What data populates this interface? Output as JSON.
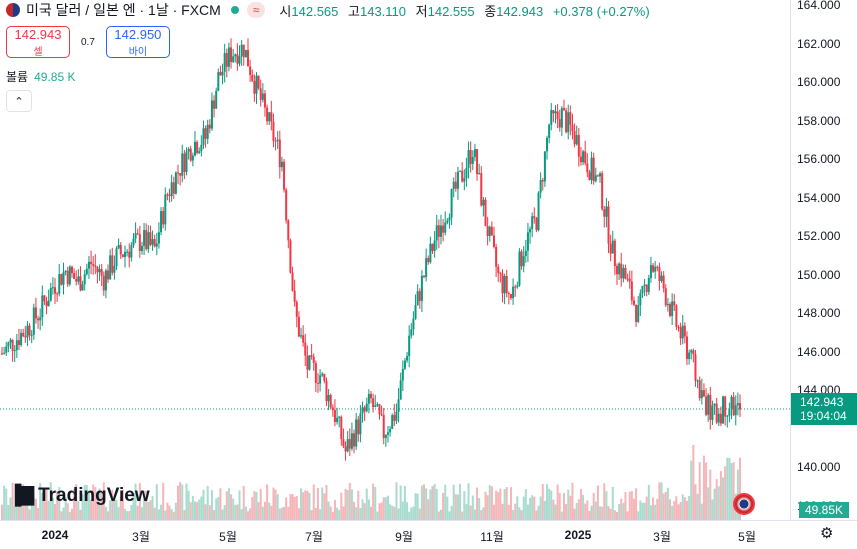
{
  "symbol": {
    "title": "미국 달러 / 일본 엔 · 1날 · FXCM",
    "status_glyph": "≈"
  },
  "ohlc": {
    "open_label": "시",
    "open": "142.565",
    "high_label": "고",
    "high": "143.110",
    "low_label": "저",
    "low": "142.555",
    "close_label": "종",
    "close": "142.943",
    "change": "+0.378 (+0.27%)"
  },
  "trade": {
    "sell_price": "142.943",
    "sell_label": "셀",
    "spread": "0.7",
    "buy_price": "142.950",
    "buy_label": "바이"
  },
  "volume": {
    "label": "볼륨",
    "value": "49.85 K",
    "badge": "49.85K"
  },
  "current_price": {
    "price": "142.943",
    "countdown": "19:04:04"
  },
  "price_axis": [
    "164.000",
    "162.000",
    "160.000",
    "158.000",
    "156.000",
    "154.000",
    "152.000",
    "150.000",
    "148.000",
    "146.000",
    "144.000",
    "140.000",
    "138.000"
  ],
  "time_axis": [
    {
      "label": "2024",
      "bold": true
    },
    {
      "label": "3월",
      "bold": false
    },
    {
      "label": "5월",
      "bold": false
    },
    {
      "label": "7월",
      "bold": false
    },
    {
      "label": "9월",
      "bold": false
    },
    {
      "label": "11월",
      "bold": false
    },
    {
      "label": "2025",
      "bold": true
    },
    {
      "label": "3월",
      "bold": false
    },
    {
      "label": "5월",
      "bold": false
    }
  ],
  "branding": {
    "logo_text": "TradingView"
  },
  "colors": {
    "up": "#089981",
    "down": "#f23645",
    "accent": "#2962ff"
  },
  "chart_data": {
    "type": "candlestick",
    "x_start": "2024-01-01",
    "x_end": "2025-04-30",
    "ylim": [
      137,
      164
    ],
    "closes": [
      145.9,
      146.6,
      147.2,
      148.1,
      149.4,
      150.2,
      149.6,
      150.6,
      149.8,
      150.9,
      151.4,
      151.8,
      151.3,
      154.2,
      155.6,
      156.8,
      157.1,
      160.2,
      161.5,
      161.8,
      159.7,
      157.8,
      155.9,
      148.1,
      145.2,
      144.8,
      143.1,
      140.8,
      142.2,
      143.4,
      141.8,
      142.9,
      146.8,
      149.6,
      151.8,
      153.4,
      154.9,
      156.6,
      152.8,
      149.9,
      148.8,
      151.4,
      152.9,
      157.8,
      158.3,
      157.2,
      155.8,
      154.6,
      151.1,
      149.8,
      147.9,
      150.6,
      149.3,
      147.4,
      145.9,
      143.7,
      142.6,
      143.3,
      142.943
    ]
  }
}
